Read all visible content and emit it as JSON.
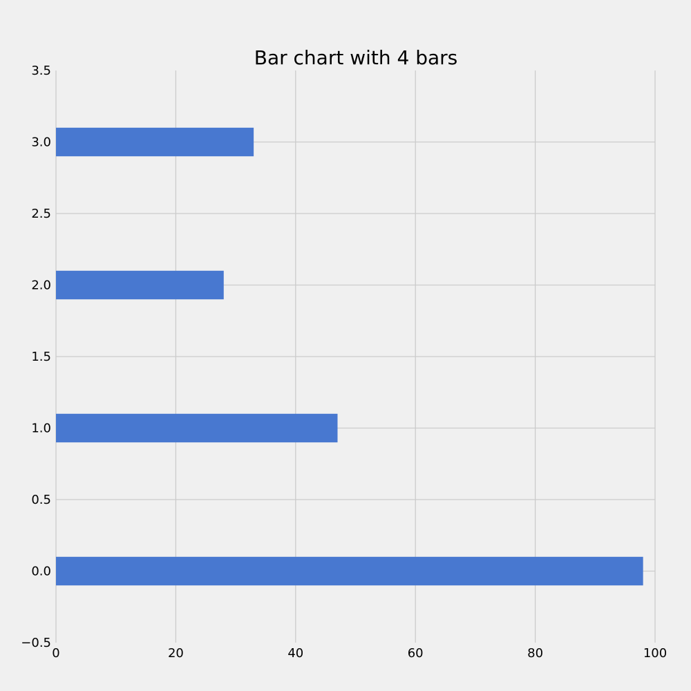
{
  "chart_data": {
    "type": "bar",
    "orientation": "horizontal",
    "title": "Bar chart with 4 bars",
    "xlabel": "",
    "ylabel": "",
    "categories": [
      0,
      1,
      2,
      3
    ],
    "values": [
      98,
      47,
      28,
      33
    ],
    "xlim": [
      0,
      100
    ],
    "ylim": [
      -0.5,
      3.5
    ],
    "x_ticks": [
      0,
      20,
      40,
      60,
      80,
      100
    ],
    "x_tick_labels": [
      "0",
      "20",
      "40",
      "60",
      "80",
      "100"
    ],
    "y_ticks": [
      -0.5,
      0.0,
      0.5,
      1.0,
      1.5,
      2.0,
      2.5,
      3.0,
      3.5
    ],
    "y_tick_labels": [
      "−0.5",
      "0.0",
      "0.5",
      "1.0",
      "1.5",
      "2.0",
      "2.5",
      "3.0",
      "3.5"
    ],
    "bar_height": 0.2,
    "grid": true,
    "bar_color": "#4878d0",
    "background_color": "#f0f0f0",
    "grid_color": "#cbcbcb"
  }
}
